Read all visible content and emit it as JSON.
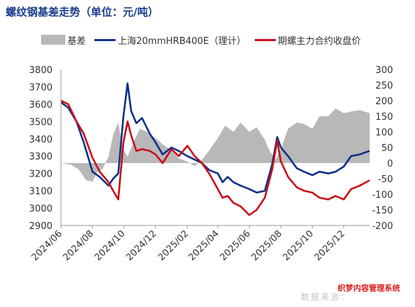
{
  "title": "螺纹钢基差走势（单位：元/吨）",
  "watermark": "数据来源：",
  "badge": "织梦内容管理系统",
  "colors": {
    "basis": "#b8b8b8",
    "spot": "#0c3288",
    "futures": "#c8101a"
  },
  "chart_data": {
    "type": "line",
    "title": "螺纹钢基差走势（单位：元/吨）",
    "x_axis": {
      "type": "date",
      "range": [
        "2024-06-01",
        "2026-01-20"
      ],
      "tick_labels": [
        "2024/06",
        "2024/08",
        "2024/10",
        "2024/12",
        "2025/02",
        "2025/04",
        "2025/06",
        "2025/08",
        "2025/10",
        "2025/12"
      ]
    },
    "y_axis_left": {
      "range": [
        2900,
        3800
      ],
      "ticks": [
        2900,
        3000,
        3100,
        3200,
        3300,
        3400,
        3500,
        3600,
        3700,
        3800
      ]
    },
    "y_axis_right": {
      "range": [
        -200,
        300
      ],
      "ticks": [
        -200,
        -150,
        -100,
        -50,
        0,
        50,
        100,
        150,
        200,
        250,
        300
      ]
    },
    "legend_position": "top",
    "grid": false,
    "series": [
      {
        "name": "基差",
        "type": "area",
        "axis": "right",
        "points": [
          [
            "2024-06-01",
            0
          ],
          [
            "2024-06-20",
            -5
          ],
          [
            "2024-07-05",
            -20
          ],
          [
            "2024-07-20",
            -55
          ],
          [
            "2024-08-01",
            -60
          ],
          [
            "2024-08-10",
            -30
          ],
          [
            "2024-08-20",
            -20
          ],
          [
            "2024-09-01",
            20
          ],
          [
            "2024-09-10",
            90
          ],
          [
            "2024-09-20",
            130
          ],
          [
            "2024-09-28",
            50
          ],
          [
            "2024-10-08",
            20
          ],
          [
            "2024-10-20",
            70
          ],
          [
            "2024-11-01",
            110
          ],
          [
            "2024-11-15",
            100
          ],
          [
            "2024-12-01",
            80
          ],
          [
            "2024-12-15",
            60
          ],
          [
            "2025-01-01",
            40
          ],
          [
            "2025-01-15",
            15
          ],
          [
            "2025-02-01",
            5
          ],
          [
            "2025-02-15",
            -10
          ],
          [
            "2025-03-01",
            10
          ],
          [
            "2025-03-15",
            40
          ],
          [
            "2025-04-01",
            80
          ],
          [
            "2025-04-15",
            120
          ],
          [
            "2025-05-01",
            100
          ],
          [
            "2025-05-15",
            130
          ],
          [
            "2025-06-01",
            100
          ],
          [
            "2025-06-15",
            115
          ],
          [
            "2025-07-01",
            75
          ],
          [
            "2025-07-10",
            40
          ],
          [
            "2025-07-22",
            10
          ],
          [
            "2025-08-01",
            45
          ],
          [
            "2025-08-15",
            110
          ],
          [
            "2025-09-01",
            130
          ],
          [
            "2025-09-15",
            125
          ],
          [
            "2025-10-01",
            110
          ],
          [
            "2025-10-15",
            150
          ],
          [
            "2025-11-01",
            150
          ],
          [
            "2025-11-15",
            175
          ],
          [
            "2025-12-01",
            160
          ],
          [
            "2025-12-15",
            165
          ],
          [
            "2026-01-01",
            170
          ],
          [
            "2026-01-20",
            160
          ]
        ]
      },
      {
        "name": "上海20mmHRB400E（理计）",
        "type": "line",
        "axis": "left",
        "points": [
          [
            "2024-06-01",
            3610
          ],
          [
            "2024-06-15",
            3580
          ],
          [
            "2024-07-01",
            3500
          ],
          [
            "2024-07-15",
            3380
          ],
          [
            "2024-08-01",
            3210
          ],
          [
            "2024-08-15",
            3180
          ],
          [
            "2024-09-01",
            3130
          ],
          [
            "2024-09-10",
            3170
          ],
          [
            "2024-09-20",
            3200
          ],
          [
            "2024-09-30",
            3530
          ],
          [
            "2024-10-08",
            3720
          ],
          [
            "2024-10-15",
            3560
          ],
          [
            "2024-10-25",
            3490
          ],
          [
            "2024-11-05",
            3520
          ],
          [
            "2024-11-20",
            3430
          ],
          [
            "2024-12-01",
            3380
          ],
          [
            "2024-12-15",
            3310
          ],
          [
            "2025-01-01",
            3350
          ],
          [
            "2025-01-15",
            3330
          ],
          [
            "2025-02-01",
            3300
          ],
          [
            "2025-02-15",
            3280
          ],
          [
            "2025-03-01",
            3260
          ],
          [
            "2025-03-15",
            3220
          ],
          [
            "2025-04-01",
            3200
          ],
          [
            "2025-04-10",
            3150
          ],
          [
            "2025-04-20",
            3180
          ],
          [
            "2025-05-01",
            3150
          ],
          [
            "2025-05-15",
            3130
          ],
          [
            "2025-06-01",
            3110
          ],
          [
            "2025-06-15",
            3090
          ],
          [
            "2025-07-01",
            3100
          ],
          [
            "2025-07-15",
            3250
          ],
          [
            "2025-07-25",
            3410
          ],
          [
            "2025-08-01",
            3350
          ],
          [
            "2025-08-15",
            3300
          ],
          [
            "2025-09-01",
            3230
          ],
          [
            "2025-09-15",
            3210
          ],
          [
            "2025-10-01",
            3190
          ],
          [
            "2025-10-15",
            3210
          ],
          [
            "2025-11-01",
            3200
          ],
          [
            "2025-11-15",
            3210
          ],
          [
            "2025-12-01",
            3240
          ],
          [
            "2025-12-15",
            3300
          ],
          [
            "2026-01-01",
            3310
          ],
          [
            "2026-01-20",
            3330
          ]
        ]
      },
      {
        "name": "期螺主力合约收盘价",
        "type": "line",
        "axis": "left",
        "points": [
          [
            "2024-06-01",
            3620
          ],
          [
            "2024-06-15",
            3600
          ],
          [
            "2024-07-01",
            3500
          ],
          [
            "2024-07-15",
            3430
          ],
          [
            "2024-08-01",
            3290
          ],
          [
            "2024-08-15",
            3210
          ],
          [
            "2024-09-01",
            3150
          ],
          [
            "2024-09-10",
            3100
          ],
          [
            "2024-09-20",
            3050
          ],
          [
            "2024-09-30",
            3380
          ],
          [
            "2024-10-08",
            3500
          ],
          [
            "2024-10-15",
            3420
          ],
          [
            "2024-10-25",
            3330
          ],
          [
            "2024-11-05",
            3340
          ],
          [
            "2024-11-20",
            3330
          ],
          [
            "2024-12-01",
            3310
          ],
          [
            "2024-12-15",
            3260
          ],
          [
            "2025-01-01",
            3340
          ],
          [
            "2025-01-15",
            3300
          ],
          [
            "2025-02-01",
            3360
          ],
          [
            "2025-02-15",
            3300
          ],
          [
            "2025-03-01",
            3260
          ],
          [
            "2025-03-15",
            3200
          ],
          [
            "2025-04-01",
            3110
          ],
          [
            "2025-04-10",
            3060
          ],
          [
            "2025-04-20",
            3070
          ],
          [
            "2025-05-01",
            3030
          ],
          [
            "2025-05-15",
            3010
          ],
          [
            "2025-06-01",
            2960
          ],
          [
            "2025-06-15",
            2990
          ],
          [
            "2025-07-01",
            3060
          ],
          [
            "2025-07-15",
            3220
          ],
          [
            "2025-07-25",
            3390
          ],
          [
            "2025-08-01",
            3270
          ],
          [
            "2025-08-15",
            3180
          ],
          [
            "2025-09-01",
            3120
          ],
          [
            "2025-09-15",
            3100
          ],
          [
            "2025-10-01",
            3090
          ],
          [
            "2025-10-15",
            3060
          ],
          [
            "2025-11-01",
            3050
          ],
          [
            "2025-11-15",
            3070
          ],
          [
            "2025-12-01",
            3050
          ],
          [
            "2025-12-15",
            3110
          ],
          [
            "2026-01-01",
            3130
          ],
          [
            "2026-01-20",
            3160
          ]
        ]
      }
    ]
  }
}
